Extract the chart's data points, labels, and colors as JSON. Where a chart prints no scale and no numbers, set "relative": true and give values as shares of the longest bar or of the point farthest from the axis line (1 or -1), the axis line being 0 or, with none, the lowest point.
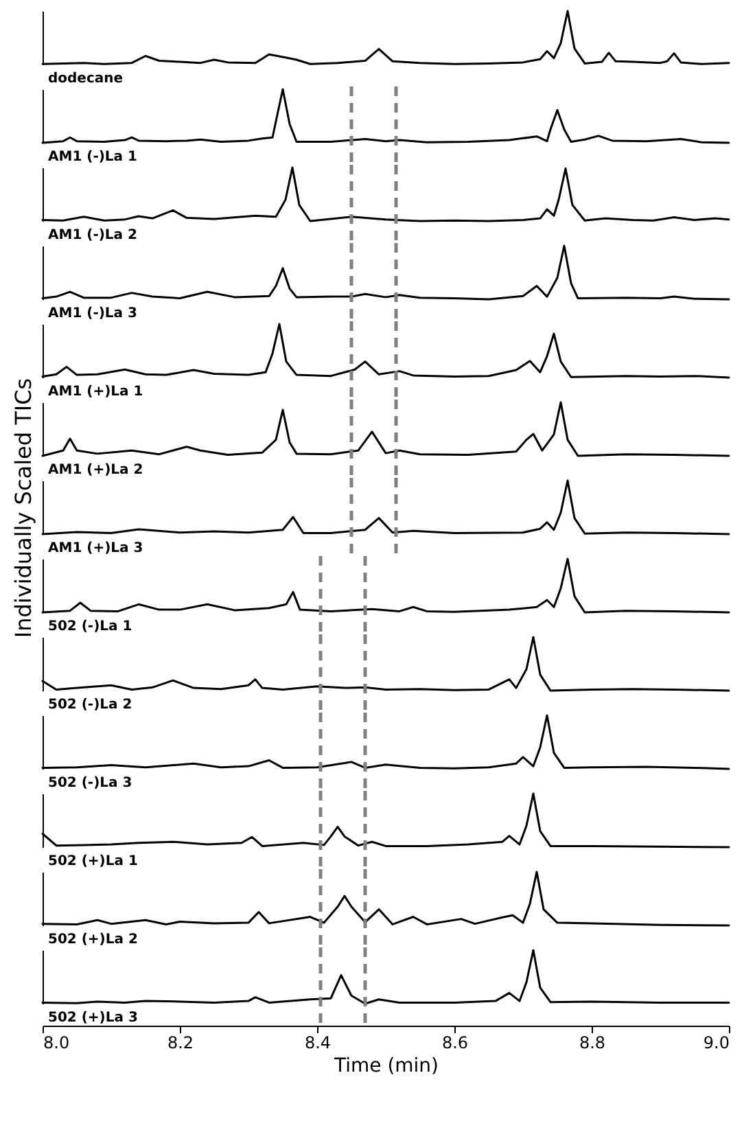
{
  "chart_data": [
    {
      "type": "line",
      "title": "dodecane",
      "relative": true,
      "color": "#000000",
      "xlim": [
        8.0,
        9.0
      ],
      "tick_labels": false,
      "x": [
        8.0,
        8.03,
        8.06,
        8.09,
        8.13,
        8.15,
        8.17,
        8.2,
        8.23,
        8.25,
        8.27,
        8.31,
        8.33,
        8.35,
        8.37,
        8.39,
        8.43,
        8.47,
        8.49,
        8.51,
        8.55,
        8.6,
        8.65,
        8.7,
        8.725,
        8.735,
        8.745,
        8.755,
        8.765,
        8.775,
        8.79,
        8.815,
        8.825,
        8.835,
        8.86,
        8.9,
        8.91,
        8.92,
        8.93,
        8.96,
        9.0
      ],
      "values": [
        0.01,
        0.02,
        0.03,
        0.01,
        0.03,
        0.16,
        0.07,
        0.05,
        0.03,
        0.09,
        0.04,
        0.03,
        0.19,
        0.14,
        0.09,
        0.01,
        0.03,
        0.07,
        0.29,
        0.06,
        0.03,
        0.01,
        0.02,
        0.04,
        0.1,
        0.25,
        0.12,
        0.4,
        1,
        0.3,
        0.02,
        0.05,
        0.22,
        0.06,
        0.05,
        0.03,
        0.06,
        0.21,
        0.04,
        0.01,
        0.03
      ]
    },
    {
      "type": "line",
      "title": "AM1 (-)La 1",
      "relative": true,
      "color": "#000000",
      "xlim": [
        8.0,
        9.0
      ],
      "tick_labels": false,
      "ref_lines": [
        {
          "axis": "x",
          "value": 8.45,
          "color": "#808080",
          "line_style": "dashed"
        },
        {
          "axis": "x",
          "value": 8.515,
          "color": "#808080",
          "line_style": "dashed"
        }
      ],
      "x": [
        8.0,
        8.03,
        8.04,
        8.05,
        8.09,
        8.12,
        8.13,
        8.14,
        8.18,
        8.21,
        8.23,
        8.26,
        8.3,
        8.32,
        8.335,
        8.34,
        8.35,
        8.36,
        8.37,
        8.42,
        8.47,
        8.5,
        8.52,
        8.56,
        8.62,
        8.68,
        8.72,
        8.735,
        8.74,
        8.75,
        8.76,
        8.77,
        8.79,
        8.81,
        8.83,
        8.88,
        8.93,
        8.96,
        9.0
      ],
      "values": [
        0.0,
        0.03,
        0.1,
        0.03,
        0.02,
        0.05,
        0.1,
        0.04,
        0.03,
        0.04,
        0.06,
        0.02,
        0.04,
        0.08,
        0.1,
        0.4,
        1,
        0.35,
        0.02,
        0.02,
        0.07,
        0.03,
        0.05,
        0.01,
        0.02,
        0.05,
        0.12,
        0.03,
        0.25,
        0.61,
        0.25,
        0.02,
        0.06,
        0.13,
        0.04,
        0.03,
        0.07,
        0.01,
        0.0
      ]
    },
    {
      "type": "line",
      "title": "AM1 (-)La 2",
      "relative": true,
      "color": "#000000",
      "xlim": [
        8.0,
        9.0
      ],
      "tick_labels": false,
      "ref_lines": [
        {
          "axis": "x",
          "value": 8.45,
          "color": "#808080",
          "line_style": "dashed"
        },
        {
          "axis": "x",
          "value": 8.515,
          "color": "#808080",
          "line_style": "dashed"
        }
      ],
      "x": [
        8.0,
        8.03,
        8.06,
        8.09,
        8.12,
        8.14,
        8.16,
        8.19,
        8.21,
        8.25,
        8.31,
        8.34,
        8.354,
        8.364,
        8.374,
        8.39,
        8.45,
        8.5,
        8.55,
        8.6,
        8.65,
        8.7,
        8.725,
        8.735,
        8.745,
        8.752,
        8.762,
        8.772,
        8.79,
        8.82,
        8.86,
        8.89,
        8.92,
        8.95,
        8.98,
        9.0
      ],
      "values": [
        0.02,
        0.01,
        0.08,
        0.01,
        0.03,
        0.09,
        0.05,
        0.2,
        0.06,
        0.04,
        0.1,
        0.08,
        0.4,
        1,
        0.3,
        0.0,
        0.08,
        0.03,
        0.0,
        0.01,
        0.0,
        0.02,
        0.05,
        0.22,
        0.1,
        0.4,
        0.98,
        0.3,
        0.01,
        0.05,
        0.02,
        0.01,
        0.07,
        0.02,
        0.05,
        0.03
      ]
    },
    {
      "type": "line",
      "title": "AM1 (-)La 3",
      "relative": true,
      "color": "#000000",
      "xlim": [
        8.0,
        9.0
      ],
      "tick_labels": false,
      "ref_lines": [
        {
          "axis": "x",
          "value": 8.45,
          "color": "#808080",
          "line_style": "dashed"
        },
        {
          "axis": "x",
          "value": 8.515,
          "color": "#808080",
          "line_style": "dashed"
        }
      ],
      "x": [
        8.0,
        8.02,
        8.04,
        8.06,
        8.1,
        8.13,
        8.16,
        8.2,
        8.24,
        8.28,
        8.33,
        8.34,
        8.35,
        8.36,
        8.37,
        8.42,
        8.45,
        8.47,
        8.5,
        8.52,
        8.55,
        8.6,
        8.65,
        8.7,
        8.72,
        8.735,
        8.75,
        8.76,
        8.77,
        8.78,
        8.85,
        8.9,
        8.92,
        8.95,
        9.0
      ],
      "values": [
        0.02,
        0.05,
        0.14,
        0.03,
        0.03,
        0.12,
        0.05,
        0.02,
        0.14,
        0.04,
        0.06,
        0.25,
        0.58,
        0.2,
        0.04,
        0.05,
        0.05,
        0.1,
        0.04,
        0.08,
        0.03,
        0.02,
        0.0,
        0.06,
        0.25,
        0.05,
        0.4,
        1,
        0.3,
        0.02,
        0.03,
        0.02,
        0.05,
        0.01,
        0.0
      ]
    },
    {
      "type": "line",
      "title": "AM1 (+)La 1",
      "relative": true,
      "color": "#000000",
      "xlim": [
        8.0,
        9.0
      ],
      "tick_labels": false,
      "ref_lines": [
        {
          "axis": "x",
          "value": 8.45,
          "color": "#808080",
          "line_style": "dashed"
        },
        {
          "axis": "x",
          "value": 8.515,
          "color": "#808080",
          "line_style": "dashed"
        }
      ],
      "x": [
        8.0,
        8.02,
        8.035,
        8.05,
        8.08,
        8.12,
        8.15,
        8.18,
        8.22,
        8.25,
        8.3,
        8.325,
        8.335,
        8.345,
        8.355,
        8.37,
        8.42,
        8.455,
        8.47,
        8.49,
        8.52,
        8.54,
        8.6,
        8.65,
        8.69,
        8.71,
        8.725,
        8.735,
        8.745,
        8.755,
        8.77,
        8.85,
        8.9,
        8.95,
        9.0
      ],
      "values": [
        0.02,
        0.06,
        0.2,
        0.05,
        0.06,
        0.15,
        0.06,
        0.05,
        0.14,
        0.07,
        0.05,
        0.1,
        0.45,
        1,
        0.3,
        0.05,
        0.03,
        0.15,
        0.3,
        0.06,
        0.12,
        0.04,
        0.02,
        0.03,
        0.14,
        0.31,
        0.1,
        0.4,
        0.82,
        0.3,
        0.01,
        0.03,
        0.02,
        0.03,
        0.0
      ]
    },
    {
      "type": "line",
      "title": "AM1 (+)La 2",
      "relative": true,
      "color": "#000000",
      "xlim": [
        8.0,
        9.0
      ],
      "tick_labels": false,
      "ref_lines": [
        {
          "axis": "x",
          "value": 8.45,
          "color": "#808080",
          "line_style": "dashed"
        },
        {
          "axis": "x",
          "value": 8.515,
          "color": "#808080",
          "line_style": "dashed"
        }
      ],
      "x": [
        8.0,
        8.03,
        8.04,
        8.05,
        8.08,
        8.13,
        8.17,
        8.21,
        8.23,
        8.27,
        8.32,
        8.34,
        8.35,
        8.36,
        8.37,
        8.42,
        8.46,
        8.48,
        8.5,
        8.52,
        8.55,
        8.62,
        8.69,
        8.705,
        8.715,
        8.728,
        8.745,
        8.755,
        8.765,
        8.78,
        8.85,
        8.92,
        9.0
      ],
      "values": [
        0.0,
        0.1,
        0.32,
        0.1,
        0.04,
        0.1,
        0.03,
        0.17,
        0.1,
        0.02,
        0.06,
        0.3,
        0.86,
        0.25,
        0.04,
        0.03,
        0.1,
        0.45,
        0.05,
        0.1,
        0.03,
        0.02,
        0.08,
        0.3,
        0.41,
        0.1,
        0.4,
        1,
        0.3,
        0.0,
        0.03,
        0.02,
        0.0
      ]
    },
    {
      "type": "line",
      "title": "AM1 (+)La 3",
      "ylabel": "Individually Scaled TICs",
      "relative": true,
      "color": "#000000",
      "xlim": [
        8.0,
        9.0
      ],
      "tick_labels": false,
      "ref_lines": [
        {
          "axis": "x",
          "value": 8.45,
          "color": "#808080",
          "line_style": "dashed"
        },
        {
          "axis": "x",
          "value": 8.515,
          "color": "#808080",
          "line_style": "dashed"
        }
      ],
      "x": [
        8.0,
        8.05,
        8.1,
        8.14,
        8.2,
        8.25,
        8.3,
        8.35,
        8.365,
        8.38,
        8.42,
        8.47,
        8.49,
        8.51,
        8.54,
        8.6,
        8.7,
        8.725,
        8.735,
        8.745,
        8.755,
        8.765,
        8.775,
        8.79,
        8.85,
        8.92,
        9.0
      ],
      "values": [
        0.0,
        0.04,
        0.02,
        0.09,
        0.03,
        0.05,
        0.03,
        0.08,
        0.32,
        0.02,
        0.02,
        0.08,
        0.3,
        0.03,
        0.06,
        0.02,
        0.03,
        0.1,
        0.22,
        0.08,
        0.4,
        1,
        0.3,
        0.01,
        0.03,
        0.02,
        0.0
      ]
    },
    {
      "type": "line",
      "title": "502 (-)La 1",
      "relative": true,
      "color": "#000000",
      "xlim": [
        8.0,
        9.0
      ],
      "tick_labels": false,
      "ref_lines": [
        {
          "axis": "x",
          "value": 8.405,
          "color": "#808080",
          "line_style": "dashed"
        },
        {
          "axis": "x",
          "value": 8.47,
          "color": "#808080",
          "line_style": "dashed"
        }
      ],
      "x": [
        8.0,
        8.04,
        8.055,
        8.07,
        8.11,
        8.14,
        8.17,
        8.2,
        8.24,
        8.28,
        8.33,
        8.355,
        8.365,
        8.375,
        8.42,
        8.48,
        8.52,
        8.54,
        8.56,
        8.6,
        8.68,
        8.72,
        8.735,
        8.745,
        8.755,
        8.765,
        8.775,
        8.79,
        8.85,
        8.92,
        9.0
      ],
      "values": [
        0.0,
        0.03,
        0.18,
        0.03,
        0.02,
        0.15,
        0.05,
        0.05,
        0.15,
        0.04,
        0.08,
        0.15,
        0.38,
        0.05,
        0.02,
        0.06,
        0.02,
        0.1,
        0.02,
        0.01,
        0.05,
        0.1,
        0.23,
        0.1,
        0.45,
        1,
        0.3,
        0.0,
        0.03,
        0.02,
        0.0
      ]
    },
    {
      "type": "line",
      "title": "502 (-)La 2",
      "relative": true,
      "color": "#000000",
      "xlim": [
        8.0,
        9.0
      ],
      "tick_labels": false,
      "ref_lines": [
        {
          "axis": "x",
          "value": 8.405,
          "color": "#808080",
          "line_style": "dashed"
        },
        {
          "axis": "x",
          "value": 8.47,
          "color": "#808080",
          "line_style": "dashed"
        }
      ],
      "x": [
        8.0,
        8.02,
        8.05,
        8.1,
        8.13,
        8.16,
        8.19,
        8.22,
        8.26,
        8.3,
        8.31,
        8.32,
        8.35,
        8.4,
        8.44,
        8.47,
        8.5,
        8.55,
        8.6,
        8.65,
        8.68,
        8.69,
        8.705,
        8.715,
        8.725,
        8.74,
        8.8,
        8.86,
        8.92,
        9.0
      ],
      "values": [
        0.18,
        0.02,
        0.05,
        0.1,
        0.02,
        0.06,
        0.19,
        0.05,
        0.03,
        0.1,
        0.21,
        0.05,
        0.02,
        0.08,
        0.05,
        0.06,
        0.02,
        0.03,
        0.01,
        0.02,
        0.21,
        0.05,
        0.4,
        1,
        0.3,
        0.0,
        0.02,
        0.03,
        0.02,
        0.0
      ]
    },
    {
      "type": "line",
      "title": "502 (-)La 3",
      "relative": true,
      "color": "#000000",
      "xlim": [
        8.0,
        9.0
      ],
      "tick_labels": false,
      "ref_lines": [
        {
          "axis": "x",
          "value": 8.405,
          "color": "#808080",
          "line_style": "dashed"
        },
        {
          "axis": "x",
          "value": 8.47,
          "color": "#808080",
          "line_style": "dashed"
        }
      ],
      "x": [
        8.0,
        8.05,
        8.1,
        8.15,
        8.22,
        8.26,
        8.3,
        8.33,
        8.35,
        8.4,
        8.45,
        8.47,
        8.5,
        8.55,
        8.6,
        8.65,
        8.69,
        8.7,
        8.715,
        8.725,
        8.735,
        8.745,
        8.76,
        8.8,
        8.88,
        8.95,
        9.0
      ],
      "values": [
        0.02,
        0.03,
        0.07,
        0.03,
        0.1,
        0.03,
        0.05,
        0.16,
        0.02,
        0.03,
        0.13,
        0.02,
        0.08,
        0.02,
        0.01,
        0.03,
        0.1,
        0.22,
        0.05,
        0.4,
        1,
        0.3,
        0.02,
        0.03,
        0.04,
        0.02,
        0.0
      ]
    },
    {
      "type": "line",
      "title": "502 (+)La 1",
      "relative": true,
      "color": "#000000",
      "xlim": [
        8.0,
        9.0
      ],
      "tick_labels": false,
      "ref_lines": [
        {
          "axis": "x",
          "value": 8.405,
          "color": "#808080",
          "line_style": "dashed"
        },
        {
          "axis": "x",
          "value": 8.47,
          "color": "#808080",
          "line_style": "dashed"
        }
      ],
      "x": [
        8.0,
        8.02,
        8.06,
        8.1,
        8.14,
        8.19,
        8.24,
        8.29,
        8.305,
        8.32,
        8.38,
        8.41,
        8.42,
        8.43,
        8.44,
        8.46,
        8.48,
        8.5,
        8.56,
        8.62,
        8.67,
        8.68,
        8.695,
        8.705,
        8.715,
        8.725,
        8.74,
        8.8,
        8.9,
        9.0
      ],
      "values": [
        0.25,
        0.03,
        0.04,
        0.05,
        0.08,
        0.1,
        0.05,
        0.08,
        0.19,
        0.02,
        0.08,
        0.04,
        0.2,
        0.38,
        0.2,
        0.03,
        0.1,
        0.02,
        0.02,
        0.05,
        0.1,
        0.21,
        0.05,
        0.4,
        1,
        0.3,
        0.02,
        0.02,
        0.01,
        0.0
      ]
    },
    {
      "type": "line",
      "title": "502 (+)La 2",
      "relative": true,
      "color": "#000000",
      "xlim": [
        8.0,
        9.0
      ],
      "tick_labels": false,
      "ref_lines": [
        {
          "axis": "x",
          "value": 8.405,
          "color": "#808080",
          "line_style": "dashed"
        },
        {
          "axis": "x",
          "value": 8.47,
          "color": "#808080",
          "line_style": "dashed"
        }
      ],
      "x": [
        8.0,
        8.05,
        8.08,
        8.1,
        8.15,
        8.18,
        8.2,
        8.25,
        8.3,
        8.315,
        8.33,
        8.39,
        8.41,
        8.43,
        8.44,
        8.45,
        8.47,
        8.49,
        8.51,
        8.54,
        8.56,
        8.61,
        8.63,
        8.67,
        8.685,
        8.7,
        8.71,
        8.72,
        8.73,
        8.75,
        8.8,
        8.9,
        9.0
      ],
      "values": [
        0.03,
        0.02,
        0.1,
        0.03,
        0.1,
        0.02,
        0.07,
        0.04,
        0.05,
        0.25,
        0.04,
        0.16,
        0.05,
        0.35,
        0.55,
        0.35,
        0.06,
        0.3,
        0.02,
        0.16,
        0.02,
        0.12,
        0.03,
        0.15,
        0.19,
        0.05,
        0.4,
        1,
        0.3,
        0.05,
        0.04,
        0.01,
        0.0
      ]
    },
    {
      "type": "line",
      "title": "502 (+)La 3",
      "xlabel": "Time (min)",
      "relative": true,
      "color": "#000000",
      "xlim": [
        8.0,
        9.0
      ],
      "tick_labels": "x",
      "xticks": [
        {
          "value": 8,
          "label": "8.0"
        },
        8.2,
        8.4,
        8.6,
        8.8,
        {
          "value": 9,
          "label": "9.0"
        }
      ],
      "ref_lines": [
        {
          "axis": "x",
          "value": 8.405,
          "color": "#808080",
          "line_style": "dashed"
        },
        {
          "axis": "x",
          "value": 8.47,
          "color": "#808080",
          "line_style": "dashed"
        }
      ],
      "x": [
        8.0,
        8.05,
        8.08,
        8.12,
        8.15,
        8.2,
        8.25,
        8.3,
        8.31,
        8.33,
        8.39,
        8.42,
        8.435,
        8.45,
        8.47,
        8.49,
        8.52,
        8.6,
        8.66,
        8.68,
        8.695,
        8.705,
        8.715,
        8.725,
        8.74,
        8.8,
        8.9,
        9.0
      ],
      "values": [
        0.02,
        0.01,
        0.04,
        0.02,
        0.05,
        0.04,
        0.02,
        0.05,
        0.12,
        0.02,
        0.08,
        0.1,
        0.53,
        0.15,
        0.0,
        0.08,
        0.02,
        0.02,
        0.05,
        0.2,
        0.05,
        0.4,
        1,
        0.3,
        0.03,
        0.04,
        0.02,
        0.02
      ]
    }
  ]
}
